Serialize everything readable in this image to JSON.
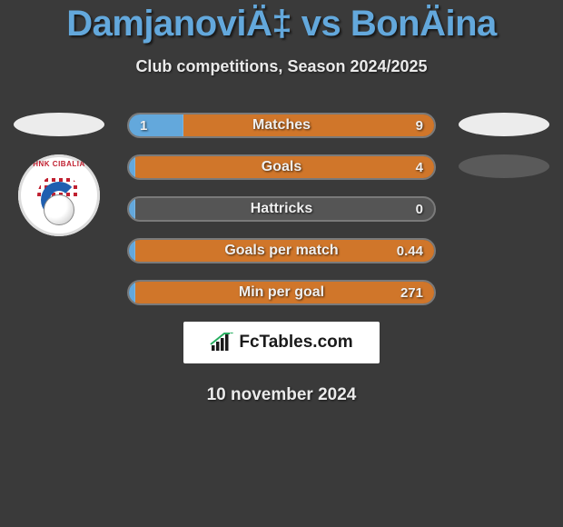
{
  "title": "DamjanoviÄ‡ vs BonÄina",
  "subtitle": "Club competitions, Season 2024/2025",
  "date": "10 november 2024",
  "logo_text": "FcTables.com",
  "club_badge_text": "HNK CIBALIA",
  "colors": {
    "background": "#3a3a3a",
    "title": "#63a8dc",
    "left_fill": "#63a8dc",
    "right_fill": "#d0762a",
    "bar_track": "#555555",
    "bar_border": "#7a7a7a",
    "text": "#eaeaea",
    "logo_bg": "#ffffff"
  },
  "bars": [
    {
      "label": "Matches",
      "left": "1",
      "right": "9",
      "left_pct": 18,
      "right_pct": 82
    },
    {
      "label": "Goals",
      "left": "",
      "right": "4",
      "left_pct": 2,
      "right_pct": 98
    },
    {
      "label": "Hattricks",
      "left": "",
      "right": "0",
      "left_pct": 2,
      "right_pct": 0
    },
    {
      "label": "Goals per match",
      "left": "",
      "right": "0.44",
      "left_pct": 2,
      "right_pct": 98
    },
    {
      "label": "Min per goal",
      "left": "",
      "right": "271",
      "left_pct": 2,
      "right_pct": 98
    }
  ]
}
